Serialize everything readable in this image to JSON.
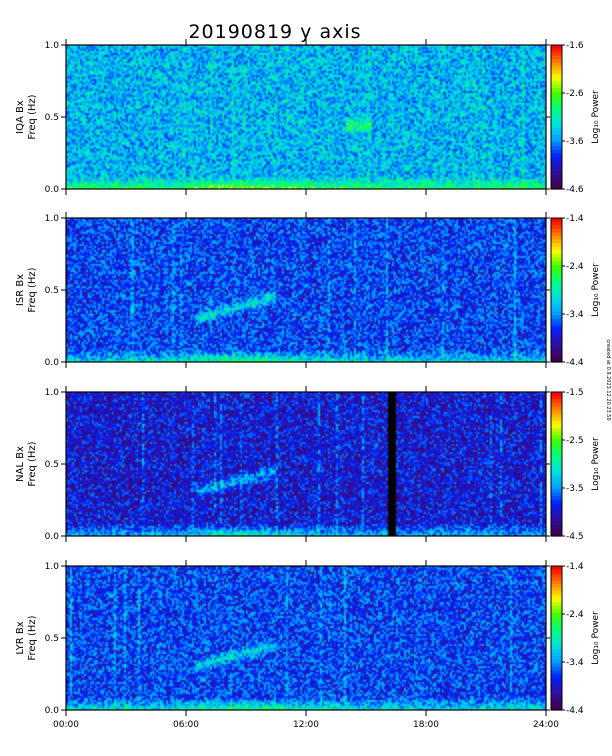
{
  "figure": {
    "title": "20190819 y axis",
    "side_note": "created at 0.9.2023.12.20.23.50"
  },
  "chart_data": {
    "type": "heatmap",
    "title": "20190819 y axis",
    "x_ticks": [
      "00:00",
      "06:00",
      "12:00",
      "18:00",
      "24:00"
    ],
    "x_range_hours": [
      0,
      24
    ],
    "y_ticks": [
      "0.0",
      "0.5",
      "1.0"
    ],
    "y_range_hz": [
      0,
      1
    ],
    "colorbar_label": "Log₁₀ Power",
    "colormap": [
      "#400050",
      "#3010a0",
      "#0020ff",
      "#00a0ff",
      "#00e0e0",
      "#00ff80",
      "#40ff00",
      "#ffff00",
      "#ff8000",
      "#ff0000"
    ],
    "panels": [
      {
        "station": "IQA Bx",
        "ylabel_line1": "IQA Bx",
        "ylabel_line2": "Freq (Hz)",
        "colorbar_ticks": [
          "-1.6",
          "-2.6",
          "-3.6",
          "-4.6"
        ],
        "colorbar_range": [
          -4.6,
          -1.6
        ],
        "base_level": 0.38,
        "data_gaps_hours": []
      },
      {
        "station": "ISR Bx",
        "ylabel_line1": "ISR Bx",
        "ylabel_line2": "Freq (Hz)",
        "colorbar_ticks": [
          "-1.4",
          "-2.4",
          "-3.4",
          "-4.4"
        ],
        "colorbar_range": [
          -4.4,
          -1.4
        ],
        "base_level": 0.24,
        "data_gaps_hours": []
      },
      {
        "station": "NAL Bx",
        "ylabel_line1": "NAL Bx",
        "ylabel_line2": "Freq (Hz)",
        "colorbar_ticks": [
          "-1.5",
          "-2.5",
          "-3.5",
          "-4.5"
        ],
        "colorbar_range": [
          -4.5,
          -1.5
        ],
        "base_level": 0.17,
        "data_gaps_hours": [
          [
            16.1,
            16.55
          ]
        ]
      },
      {
        "station": "LYR Bx",
        "ylabel_line1": "LYR Bx",
        "ylabel_line2": "Freq (Hz)",
        "colorbar_ticks": [
          "-1.4",
          "-2.4",
          "-3.4",
          "-4.4"
        ],
        "colorbar_range": [
          -4.4,
          -1.4
        ],
        "base_level": 0.24,
        "data_gaps_hours": []
      }
    ],
    "features": [
      {
        "panel": "ISR Bx",
        "type": "rising tone",
        "time_hours": [
          6.5,
          10.5
        ],
        "freq_hz": [
          0.3,
          0.45
        ]
      },
      {
        "panel": "NAL Bx",
        "type": "rising tone",
        "time_hours": [
          6.5,
          10.5
        ],
        "freq_hz": [
          0.3,
          0.45
        ]
      },
      {
        "panel": "LYR Bx",
        "type": "rising tone",
        "time_hours": [
          6.5,
          10.5
        ],
        "freq_hz": [
          0.3,
          0.45
        ]
      },
      {
        "panel": "IQA Bx",
        "type": "band",
        "time_hours": [
          14.0,
          15.3
        ],
        "freq_hz": [
          0.38,
          0.5
        ]
      }
    ]
  }
}
